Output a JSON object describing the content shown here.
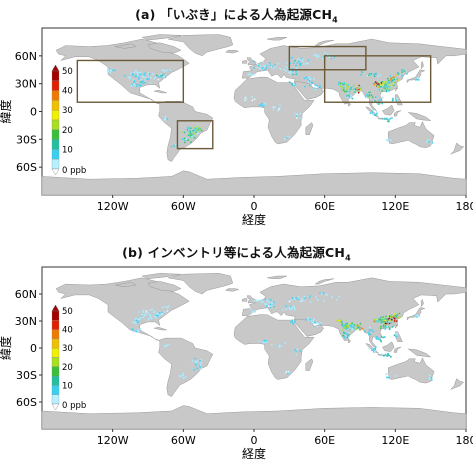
{
  "panels": [
    {
      "title": "(a) 「いぶき」による人為起源CH",
      "title_sub": "4",
      "xlabel": "経度",
      "ylabel": "緯度",
      "colorbar_unit": "0 ppb"
    },
    {
      "title": "(b) インベントリ等による人為起源CH",
      "title_sub": "4",
      "xlabel": "経度",
      "ylabel": "緯度",
      "colorbar_unit": "0 ppb"
    }
  ],
  "x_ticks": [
    "120W",
    "60W",
    "0",
    "60E",
    "120E",
    "180"
  ],
  "y_ticks": [
    "60N",
    "30N",
    "0",
    "30S",
    "60S"
  ],
  "colorbar_ticks": [
    "50",
    "40",
    "30",
    "20",
    "10"
  ],
  "colors": {
    "ocean": "#ffffff",
    "land": "#c8c8c8",
    "boxes": "#6b5a38",
    "scale": [
      "#ffffff",
      "#b7f0ff",
      "#38d0f0",
      "#20c0a0",
      "#38c038",
      "#a8e020",
      "#f0f000",
      "#f0c000",
      "#f07a00",
      "#e02000",
      "#a00000"
    ]
  },
  "value_range_ppb": [
    0,
    50
  ]
}
